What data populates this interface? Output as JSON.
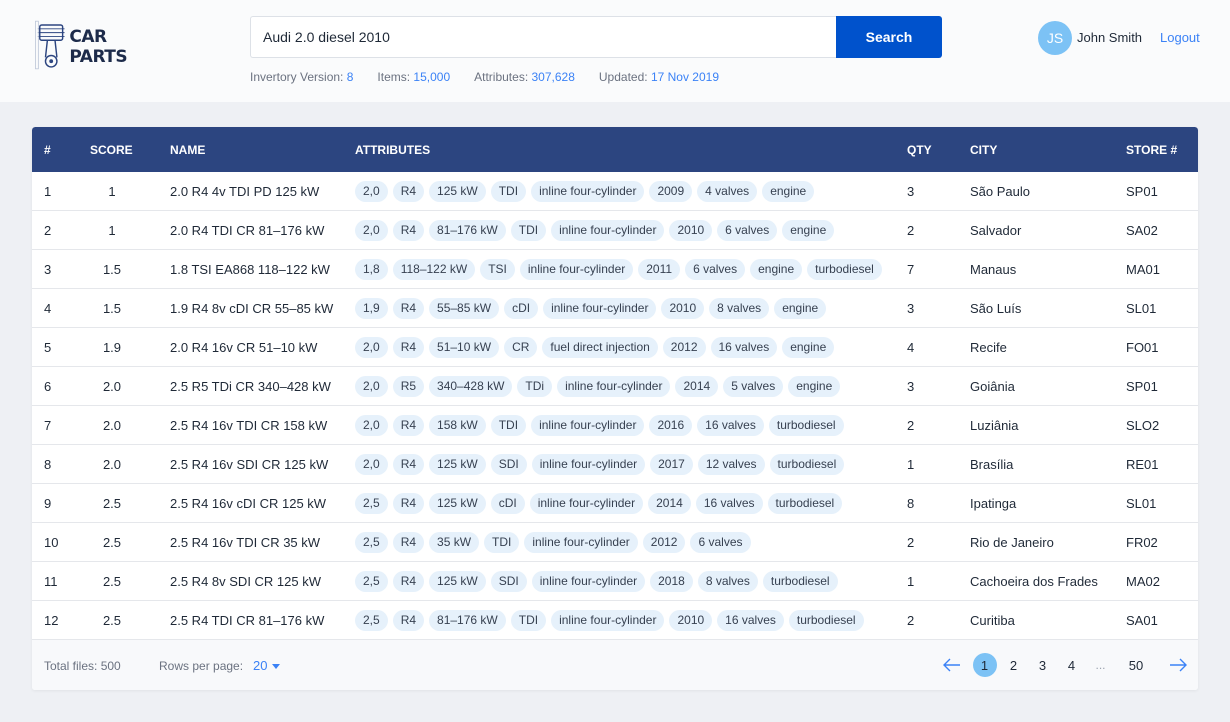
{
  "brand": {
    "name": "CAR PARTS",
    "logo_icon": "piston-icon"
  },
  "search": {
    "value": "Audi 2.0 diesel 2010",
    "placeholder": "",
    "button_label": "Search"
  },
  "inventory": {
    "version_label": "Invertory Version:",
    "version": "8",
    "items_label": "Items:",
    "items": "15,000",
    "attributes_label": "Attributes:",
    "attributes": "307,628",
    "updated_label": "Updated:",
    "updated": "17 Nov 2019"
  },
  "user": {
    "initials": "JS",
    "name": "John Smith",
    "logout_label": "Logout"
  },
  "colors": {
    "header_bg": "#2c4580",
    "accent": "#0052cc",
    "link": "#3b82f6",
    "tag_bg": "#e6f1fb",
    "avatar_bg": "#7cc2f5"
  },
  "table": {
    "columns": [
      "#",
      "SCORE",
      "NAME",
      "ATTRIBUTES",
      "QTY",
      "CITY",
      "STORE #"
    ],
    "rows": [
      {
        "num": "1",
        "score": "1",
        "name": "2.0 R4 4v TDI PD 125 kW",
        "attributes": [
          "2,0",
          "R4",
          "125 kW",
          "TDI",
          "inline four-cylinder",
          "2009",
          "4 valves",
          "engine"
        ],
        "qty": "3",
        "city": "São Paulo",
        "store": "SP01"
      },
      {
        "num": "2",
        "score": "1",
        "name": "2.0 R4 TDI CR 81–176 kW",
        "attributes": [
          "2,0",
          "R4",
          "81–176 kW",
          "TDI",
          "inline four-cylinder",
          "2010",
          "6 valves",
          "engine"
        ],
        "qty": "2",
        "city": "Salvador",
        "store": "SA02"
      },
      {
        "num": "3",
        "score": "1.5",
        "name": "1.8 TSI EA868 118–122 kW",
        "attributes": [
          "1,8",
          "118–122 kW",
          "TSI",
          "inline four-cylinder",
          "2011",
          "6 valves",
          "engine",
          "turbodiesel"
        ],
        "qty": "7",
        "city": "Manaus",
        "store": "MA01"
      },
      {
        "num": "4",
        "score": "1.5",
        "name": "1.9 R4 8v cDI CR 55–85 kW",
        "attributes": [
          "1,9",
          "R4",
          "55–85 kW",
          "cDI",
          "inline four-cylinder",
          "2010",
          "8 valves",
          "engine"
        ],
        "qty": "3",
        "city": "São Luís",
        "store": "SL01"
      },
      {
        "num": "5",
        "score": "1.9",
        "name": "2.0 R4 16v CR 51–10 kW",
        "attributes": [
          "2,0",
          "R4",
          "51–10 kW",
          "CR",
          "fuel direct injection",
          "2012",
          "16 valves",
          "engine"
        ],
        "qty": "4",
        "city": "Recife",
        "store": "FO01"
      },
      {
        "num": "6",
        "score": "2.0",
        "name": "2.5 R5 TDi CR 340–428 kW",
        "attributes": [
          "2,0",
          "R5",
          "340–428 kW",
          "TDi",
          "inline four-cylinder",
          "2014",
          "5 valves",
          "engine"
        ],
        "qty": "3",
        "city": "Goiânia",
        "store": "SP01"
      },
      {
        "num": "7",
        "score": "2.0",
        "name": "2.5 R4 16v TDI CR 158 kW",
        "attributes": [
          "2,0",
          "R4",
          "158 kW",
          "TDI",
          "inline four-cylinder",
          "2016",
          "16 valves",
          "turbodiesel"
        ],
        "qty": "2",
        "city": "Luziânia",
        "store": "SLO2"
      },
      {
        "num": "8",
        "score": "2.0",
        "name": "2.5 R4 16v SDI CR 125 kW",
        "attributes": [
          "2,0",
          "R4",
          "125 kW",
          "SDI",
          "inline four-cylinder",
          "2017",
          "12 valves",
          "turbodiesel"
        ],
        "qty": "1",
        "city": "Brasília",
        "store": "RE01"
      },
      {
        "num": "9",
        "score": "2.5",
        "name": "2.5 R4 16v cDI CR 125 kW",
        "attributes": [
          "2,5",
          "R4",
          "125 kW",
          "cDI",
          "inline four-cylinder",
          "2014",
          "16 valves",
          "turbodiesel"
        ],
        "qty": "8",
        "city": "Ipatinga",
        "store": "SL01"
      },
      {
        "num": "10",
        "score": "2.5",
        "name": "2.5 R4 16v TDI CR 35 kW",
        "attributes": [
          "2,5",
          "R4",
          "35 kW",
          "TDI",
          "inline four-cylinder",
          "2012",
          "6 valves"
        ],
        "qty": "2",
        "city": "Rio de Janeiro",
        "store": "FR02"
      },
      {
        "num": "11",
        "score": "2.5",
        "name": "2.5 R4 8v SDI CR 125 kW",
        "attributes": [
          "2,5",
          "R4",
          "125 kW",
          "SDI",
          "inline four-cylinder",
          "2018",
          "8 valves",
          "turbodiesel"
        ],
        "qty": "1",
        "city": "Cachoeira dos Frades",
        "store": "MA02"
      },
      {
        "num": "12",
        "score": "2.5",
        "name": "2.5 R4 TDI CR 81–176 kW",
        "attributes": [
          "2,5",
          "R4",
          "81–176 kW",
          "TDI",
          "inline four-cylinder",
          "2010",
          "16 valves",
          "turbodiesel"
        ],
        "qty": "2",
        "city": "Curitiba",
        "store": "SA01"
      }
    ]
  },
  "footer": {
    "total_label": "Total files: 500",
    "rows_per_page_label": "Rows per page:",
    "rows_per_page": "20",
    "pages": [
      "1",
      "2",
      "3",
      "4"
    ],
    "ellipsis": "...",
    "last_page": "50",
    "current_page": "1",
    "prev_icon": "arrow-left-icon",
    "next_icon": "arrow-right-icon"
  }
}
